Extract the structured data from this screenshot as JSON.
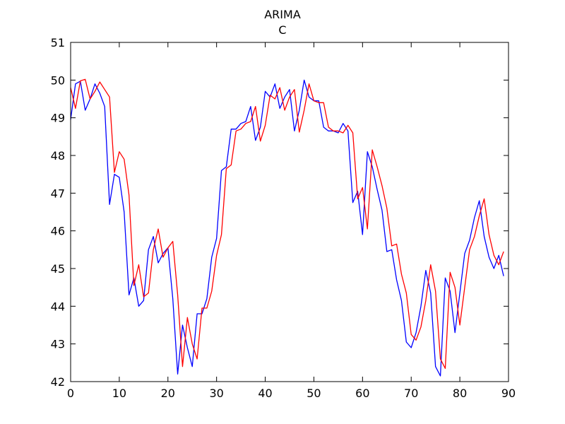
{
  "chart_data": {
    "type": "line",
    "title": "ARIMA",
    "subtitle": "C",
    "xlabel": "",
    "ylabel": "",
    "xlim": [
      0,
      90
    ],
    "ylim": [
      42,
      51
    ],
    "xticks": [
      0,
      10,
      20,
      30,
      40,
      50,
      60,
      70,
      80,
      90
    ],
    "yticks": [
      42,
      43,
      44,
      45,
      46,
      47,
      48,
      49,
      50,
      51
    ],
    "grid": false,
    "legend": "none",
    "series": [
      {
        "color": "#0000ff",
        "x": [
          0,
          1,
          2,
          3,
          4,
          5,
          6,
          7,
          8,
          9,
          10,
          11,
          12,
          13,
          14,
          15,
          16,
          17,
          18,
          19,
          20,
          21,
          22,
          23,
          24,
          25,
          26,
          27,
          28,
          29,
          30,
          31,
          32,
          33,
          34,
          35,
          36,
          37,
          38,
          39,
          40,
          41,
          42,
          43,
          44,
          45,
          46,
          47,
          48,
          49,
          50,
          51,
          52,
          53,
          54,
          55,
          56,
          57,
          58,
          59,
          60,
          61,
          62,
          63,
          64,
          65,
          66,
          67,
          68,
          69,
          70,
          71,
          72,
          73,
          74,
          75,
          76,
          77,
          78,
          79,
          80,
          81,
          82,
          83,
          84,
          85,
          86,
          87,
          88,
          89
        ],
        "values": [
          48.95,
          49.9,
          49.97,
          49.2,
          49.5,
          49.9,
          49.65,
          49.3,
          46.7,
          47.5,
          47.42,
          46.5,
          44.3,
          44.75,
          44.0,
          44.15,
          45.5,
          45.85,
          45.15,
          45.4,
          45.55,
          44.2,
          42.2,
          43.5,
          42.9,
          42.4,
          43.8,
          43.8,
          44.2,
          45.3,
          45.8,
          47.6,
          47.7,
          48.7,
          48.7,
          48.85,
          48.9,
          49.3,
          48.4,
          48.75,
          49.7,
          49.55,
          49.9,
          49.25,
          49.55,
          49.75,
          48.65,
          49.2,
          50.0,
          49.55,
          49.45,
          49.45,
          48.75,
          48.65,
          48.65,
          48.6,
          48.85,
          48.65,
          46.75,
          47.05,
          45.9,
          48.1,
          47.7,
          47.1,
          46.55,
          45.45,
          45.5,
          44.7,
          44.15,
          43.05,
          42.9,
          43.3,
          44.0,
          44.95,
          44.35,
          42.4,
          42.15,
          44.75,
          44.4,
          43.3,
          44.35,
          45.4,
          45.75,
          46.35,
          46.8,
          45.85,
          45.3,
          45.0,
          45.35,
          44.8
        ]
      },
      {
        "color": "#ff0000",
        "x": [
          0,
          1,
          2,
          3,
          4,
          5,
          6,
          7,
          8,
          9,
          10,
          11,
          12,
          13,
          14,
          15,
          16,
          17,
          18,
          19,
          20,
          21,
          22,
          23,
          24,
          25,
          26,
          27,
          28,
          29,
          30,
          31,
          32,
          33,
          34,
          35,
          36,
          37,
          38,
          39,
          40,
          41,
          42,
          43,
          44,
          45,
          46,
          47,
          48,
          49,
          50,
          51,
          52,
          53,
          54,
          55,
          56,
          57,
          58,
          59,
          60,
          61,
          62,
          63,
          64,
          65,
          66,
          67,
          68,
          69,
          70,
          71,
          72,
          73,
          74,
          75,
          76,
          77,
          78,
          79,
          80,
          81,
          82,
          83,
          84,
          85,
          86,
          87,
          88,
          89
        ],
        "values": [
          49.8,
          49.25,
          49.98,
          50.02,
          49.5,
          49.7,
          49.95,
          49.75,
          49.55,
          47.55,
          48.1,
          47.9,
          46.95,
          44.55,
          45.1,
          44.25,
          44.35,
          45.5,
          46.05,
          45.3,
          45.55,
          45.72,
          44.3,
          42.4,
          43.7,
          43.0,
          42.6,
          43.95,
          43.95,
          44.4,
          45.35,
          45.9,
          47.65,
          47.75,
          48.65,
          48.7,
          48.85,
          48.9,
          49.3,
          48.38,
          48.8,
          49.6,
          49.5,
          49.8,
          49.2,
          49.55,
          49.75,
          48.62,
          49.2,
          49.9,
          49.45,
          49.4,
          49.4,
          48.75,
          48.65,
          48.65,
          48.6,
          48.8,
          48.6,
          46.85,
          47.15,
          46.05,
          48.15,
          47.7,
          47.2,
          46.6,
          45.6,
          45.65,
          44.85,
          44.35,
          43.25,
          43.1,
          43.45,
          44.15,
          45.1,
          44.4,
          42.6,
          42.35,
          44.9,
          44.5,
          43.5,
          44.5,
          45.5,
          45.85,
          46.4,
          46.85,
          45.9,
          45.35,
          45.1,
          45.45
        ]
      }
    ]
  }
}
